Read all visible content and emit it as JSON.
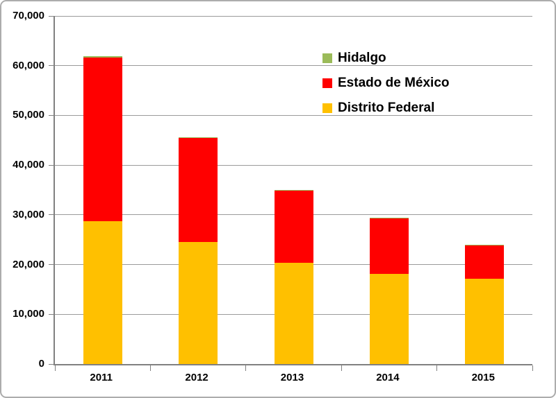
{
  "chart_data": {
    "type": "bar",
    "stacked": true,
    "title": "",
    "xlabel": "",
    "ylabel": "",
    "categories": [
      "2011",
      "2012",
      "2013",
      "2014",
      "2015"
    ],
    "series": [
      {
        "name": "Distrito Federal",
        "color": "#FFC000",
        "values": [
          28700,
          24500,
          20400,
          18100,
          17100
        ]
      },
      {
        "name": "Estado de México",
        "color": "#FF0000",
        "values": [
          33000,
          21000,
          14500,
          11200,
          6800
        ]
      },
      {
        "name": "Hidalgo",
        "color": "#9BBB59",
        "values": [
          150,
          150,
          100,
          100,
          100
        ]
      }
    ],
    "totals": [
      61850,
      45650,
      35000,
      29400,
      24000
    ],
    "ylim": [
      0,
      70000
    ],
    "ytick_step": 10000,
    "ytick_labels": [
      "0",
      "10,000",
      "20,000",
      "30,000",
      "40,000",
      "50,000",
      "60,000",
      "70,000"
    ],
    "grid": true,
    "legend_position": "inside-top-right",
    "legend_order_top_to_bottom": [
      "Hidalgo",
      "Estado de México",
      "Distrito Federal"
    ]
  },
  "colors": {
    "axis": "#808080",
    "gridline": "#9A9A9A",
    "text": "#000000",
    "outer_border": "#ACACAC",
    "background": "#FFFFFF"
  }
}
